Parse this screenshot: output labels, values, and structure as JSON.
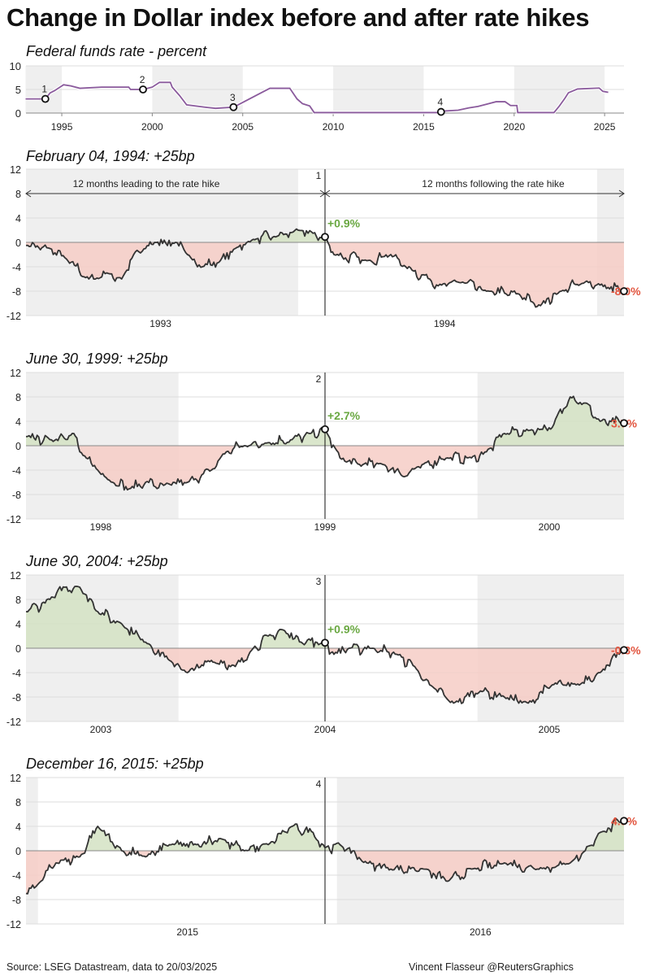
{
  "title": "Change in Dollar index before and after rate hikes",
  "source": "Source: LSEG Datastream, data to 20/03/2025",
  "credit": "Vincent Flasseur @ReutersGraphics",
  "colors": {
    "line": "#333333",
    "positive_fill": "#d3e2c3",
    "negative_fill": "#f6cdc5",
    "positive_label": "#6aa842",
    "negative_label": "#e2553f",
    "shade": "#efefef",
    "rate_line": "#8a5a9c"
  },
  "chart_data": [
    {
      "type": "line",
      "title": "Federal funds rate - percent",
      "xlim": [
        1993,
        2025.6
      ],
      "ylim": [
        0,
        10
      ],
      "yticks": [
        0,
        5,
        10
      ],
      "xticks": [
        1995,
        2000,
        2005,
        2010,
        2015,
        2020,
        2025
      ],
      "shaded_ranges": [
        [
          1993,
          1995
        ],
        [
          2000,
          2005
        ],
        [
          2010,
          2015
        ],
        [
          2020,
          2025
        ]
      ],
      "grid": true,
      "series": [
        {
          "points": [
            [
              1993,
              3
            ],
            [
              1994.1,
              3
            ],
            [
              1994.2,
              3.5
            ],
            [
              1994.35,
              4.25
            ],
            [
              1994.6,
              4.75
            ],
            [
              1994.9,
              5.5
            ],
            [
              1995.1,
              6
            ],
            [
              1995.5,
              5.75
            ],
            [
              1996,
              5.25
            ],
            [
              1997.2,
              5.5
            ],
            [
              1998.7,
              5.5
            ],
            [
              1998.8,
              5
            ],
            [
              1999.5,
              5
            ],
            [
              2000,
              5.5
            ],
            [
              2000.4,
              6.5
            ],
            [
              2001,
              6.5
            ],
            [
              2001.1,
              5.5
            ],
            [
              2001.5,
              3.75
            ],
            [
              2001.9,
              1.75
            ],
            [
              2002.9,
              1.25
            ],
            [
              2003.5,
              1
            ],
            [
              2004.5,
              1.25
            ],
            [
              2005,
              2.25
            ],
            [
              2006,
              4.25
            ],
            [
              2006.5,
              5.25
            ],
            [
              2007.6,
              5.25
            ],
            [
              2008,
              3
            ],
            [
              2008.3,
              2
            ],
            [
              2008.7,
              1.5
            ],
            [
              2008.95,
              0.1
            ],
            [
              2015.96,
              0.1
            ],
            [
              2016,
              0.4
            ],
            [
              2016.9,
              0.6
            ],
            [
              2017.5,
              1.1
            ],
            [
              2018,
              1.4
            ],
            [
              2018.5,
              1.9
            ],
            [
              2019,
              2.4
            ],
            [
              2019.5,
              2.4
            ],
            [
              2019.8,
              1.6
            ],
            [
              2020.15,
              1.6
            ],
            [
              2020.2,
              0.1
            ],
            [
              2022.2,
              0.1
            ],
            [
              2022.5,
              1.5
            ],
            [
              2022.8,
              3.1
            ],
            [
              2023,
              4.3
            ],
            [
              2023.5,
              5.1
            ],
            [
              2024.7,
              5.3
            ],
            [
              2024.9,
              4.6
            ],
            [
              2025.2,
              4.4
            ]
          ]
        }
      ],
      "markers": [
        {
          "label": "1",
          "x": 1994.09,
          "y": 3
        },
        {
          "label": "2",
          "x": 1999.49,
          "y": 5
        },
        {
          "label": "3",
          "x": 2004.49,
          "y": 1.25
        },
        {
          "label": "4",
          "x": 2015.96,
          "y": 0.25
        }
      ]
    },
    {
      "type": "area",
      "title": "February 04, 1994: +25bp",
      "hike_number": "1",
      "hike_date": 1994.09,
      "ylim": [
        -12,
        12
      ],
      "yticks": [
        -12,
        -8,
        -4,
        0,
        4,
        8,
        12
      ],
      "xticks": [
        [
          1993.54,
          "1993"
        ],
        [
          1994.49,
          "1994"
        ]
      ],
      "shaded_ranges": [
        [
          1993.09,
          1994.0
        ],
        [
          1995.0,
          1995.09
        ]
      ],
      "annotations": {
        "before": "12 months leading to the rate hike",
        "after": "12 months following the rate hike"
      },
      "start_label": "+0.9%",
      "end_label": "-8.0%",
      "points": [
        [
          1993.09,
          -0.5
        ],
        [
          1993.17,
          -1
        ],
        [
          1993.22,
          -2.5
        ],
        [
          1993.3,
          -6
        ],
        [
          1993.36,
          -5
        ],
        [
          1993.41,
          -6
        ],
        [
          1993.45,
          -2
        ],
        [
          1993.49,
          -1
        ],
        [
          1993.52,
          0
        ],
        [
          1993.59,
          0
        ],
        [
          1993.63,
          -2
        ],
        [
          1993.68,
          -4
        ],
        [
          1993.74,
          -3
        ],
        [
          1993.79,
          -1
        ],
        [
          1993.85,
          0.5
        ],
        [
          1993.93,
          1
        ],
        [
          1994.0,
          2
        ],
        [
          1994.05,
          1.5
        ],
        [
          1994.09,
          0.9
        ],
        [
          1994.12,
          -2
        ],
        [
          1994.23,
          -3
        ],
        [
          1994.31,
          -2
        ],
        [
          1994.36,
          -4
        ],
        [
          1994.44,
          -6
        ],
        [
          1994.48,
          -7
        ],
        [
          1994.55,
          -6.5
        ],
        [
          1994.63,
          -8
        ],
        [
          1994.74,
          -8.5
        ],
        [
          1994.8,
          -10.5
        ],
        [
          1994.88,
          -8
        ],
        [
          1994.96,
          -6.5
        ],
        [
          1995.01,
          -7
        ],
        [
          1995.09,
          -8.0
        ]
      ]
    },
    {
      "type": "area",
      "title": "June 30, 1999: +25bp",
      "hike_number": "2",
      "hike_date": 1999.49,
      "ylim": [
        -12,
        12
      ],
      "yticks": [
        -12,
        -8,
        -4,
        0,
        4,
        8,
        12
      ],
      "xticks": [
        [
          1998.74,
          "1998"
        ],
        [
          1999.49,
          "1999"
        ],
        [
          2000.24,
          "2000"
        ]
      ],
      "shaded_ranges": [
        [
          1998.49,
          1999.0
        ],
        [
          2000.0,
          2000.49
        ]
      ],
      "start_label": "+2.7%",
      "end_label": "3.7%",
      "points": [
        [
          1998.49,
          1.5
        ],
        [
          1998.57,
          1
        ],
        [
          1998.65,
          2
        ],
        [
          1998.67,
          -1
        ],
        [
          1998.73,
          -4
        ],
        [
          1998.78,
          -6
        ],
        [
          1998.84,
          -7
        ],
        [
          1998.89,
          -6
        ],
        [
          1998.95,
          -6.5
        ],
        [
          1999.03,
          -6
        ],
        [
          1999.11,
          -4
        ],
        [
          1999.16,
          -1
        ],
        [
          1999.22,
          0
        ],
        [
          1999.3,
          0.5
        ],
        [
          1999.38,
          1
        ],
        [
          1999.44,
          2
        ],
        [
          1999.49,
          2.7
        ],
        [
          1999.54,
          -2
        ],
        [
          1999.6,
          -3
        ],
        [
          1999.68,
          -3
        ],
        [
          1999.76,
          -5
        ],
        [
          1999.82,
          -3
        ],
        [
          1999.9,
          -2
        ],
        [
          1999.98,
          -2
        ],
        [
          2000.03,
          -1
        ],
        [
          2000.09,
          2
        ],
        [
          2000.17,
          2.5
        ],
        [
          2000.25,
          3
        ],
        [
          2000.31,
          8
        ],
        [
          2000.36,
          7
        ],
        [
          2000.41,
          4
        ],
        [
          2000.49,
          3.7
        ]
      ]
    },
    {
      "type": "area",
      "title": "June 30, 2004: +25bp",
      "hike_number": "3",
      "hike_date": 2004.49,
      "ylim": [
        -12,
        12
      ],
      "yticks": [
        -12,
        -8,
        -4,
        0,
        4,
        8,
        12
      ],
      "xticks": [
        [
          2003.74,
          "2003"
        ],
        [
          2004.49,
          "2004"
        ],
        [
          2005.24,
          "2005"
        ]
      ],
      "shaded_ranges": [
        [
          2003.49,
          2004.0
        ],
        [
          2005.0,
          2005.49
        ]
      ],
      "start_label": "+0.9%",
      "end_label": "-0.3%",
      "points": [
        [
          2003.49,
          6
        ],
        [
          2003.57,
          8
        ],
        [
          2003.62,
          10
        ],
        [
          2003.67,
          10
        ],
        [
          2003.73,
          6
        ],
        [
          2003.81,
          4
        ],
        [
          2003.89,
          1
        ],
        [
          2003.97,
          -2
        ],
        [
          2004.03,
          -4
        ],
        [
          2004.11,
          -2
        ],
        [
          2004.19,
          -3
        ],
        [
          2004.25,
          0
        ],
        [
          2004.3,
          2
        ],
        [
          2004.35,
          3
        ],
        [
          2004.41,
          1
        ],
        [
          2004.49,
          0.9
        ],
        [
          2004.52,
          -1
        ],
        [
          2004.57,
          0
        ],
        [
          2004.65,
          0
        ],
        [
          2004.73,
          -1
        ],
        [
          2004.79,
          -3
        ],
        [
          2004.84,
          -6
        ],
        [
          2004.92,
          -9
        ],
        [
          2005.01,
          -7
        ],
        [
          2005.09,
          -8
        ],
        [
          2005.17,
          -9
        ],
        [
          2005.25,
          -6
        ],
        [
          2005.33,
          -6
        ],
        [
          2005.41,
          -4
        ],
        [
          2005.49,
          -0.3
        ]
      ]
    },
    {
      "type": "area",
      "title": "December 16, 2015: +25bp",
      "hike_number": "4",
      "hike_date": 2015.96,
      "ylim": [
        -12,
        12
      ],
      "yticks": [
        -12,
        -8,
        -4,
        0,
        4,
        8,
        12
      ],
      "xticks": [
        [
          2015.5,
          "2015"
        ],
        [
          2016.48,
          "2016"
        ]
      ],
      "shaded_ranges": [
        [
          2014.96,
          2015.0
        ],
        [
          2016.0,
          2016.96
        ]
      ],
      "start_label": "",
      "end_label": "4.9%",
      "points": [
        [
          2014.96,
          -7
        ],
        [
          2015.01,
          -5
        ],
        [
          2015.06,
          -2
        ],
        [
          2015.14,
          -1
        ],
        [
          2015.2,
          4
        ],
        [
          2015.28,
          0
        ],
        [
          2015.36,
          -1
        ],
        [
          2015.44,
          1
        ],
        [
          2015.53,
          1
        ],
        [
          2015.61,
          2
        ],
        [
          2015.69,
          0
        ],
        [
          2015.77,
          1
        ],
        [
          2015.85,
          4
        ],
        [
          2015.92,
          3
        ],
        [
          2015.96,
          0.5
        ],
        [
          2016.01,
          1
        ],
        [
          2016.1,
          -2
        ],
        [
          2016.18,
          -3
        ],
        [
          2016.29,
          -3
        ],
        [
          2016.37,
          -5
        ],
        [
          2016.45,
          -3
        ],
        [
          2016.56,
          -2
        ],
        [
          2016.67,
          -3
        ],
        [
          2016.78,
          -2
        ],
        [
          2016.83,
          0
        ],
        [
          2016.88,
          3
        ],
        [
          2016.96,
          4.9
        ]
      ]
    }
  ]
}
